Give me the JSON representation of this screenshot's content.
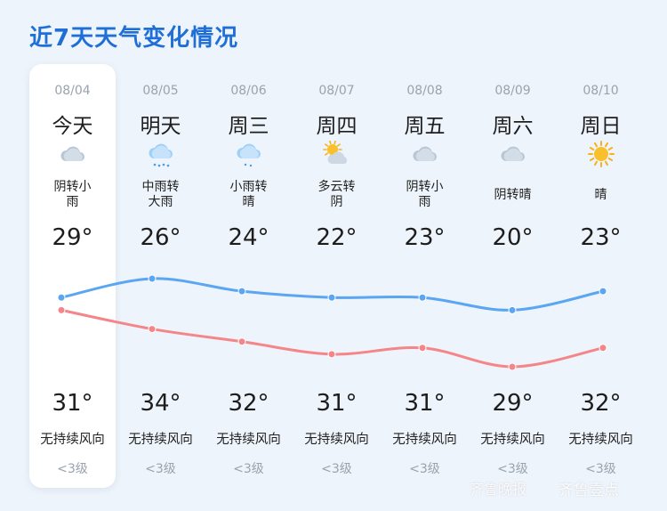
{
  "title": "近7天天气变化情况",
  "days": [
    {
      "date": "08/04",
      "day": "今天",
      "icon": "cloud-icon",
      "cond_lines": [
        "阴转小",
        "雨"
      ],
      "high": "29°",
      "low": "31°",
      "wind": "无持续风向",
      "level": "<3级"
    },
    {
      "date": "08/05",
      "day": "明天",
      "icon": "rain-cloud-icon",
      "cond_lines": [
        "中雨转",
        "大雨"
      ],
      "high": "26°",
      "low": "34°",
      "wind": "无持续风向",
      "level": "<3级"
    },
    {
      "date": "08/06",
      "day": "周三",
      "icon": "light-rain-icon",
      "cond_lines": [
        "小雨转",
        "晴"
      ],
      "high": "24°",
      "low": "32°",
      "wind": "无持续风向",
      "level": "<3级"
    },
    {
      "date": "08/07",
      "day": "周四",
      "icon": "partly-cloudy-icon",
      "cond_lines": [
        "多云转",
        "阴"
      ],
      "high": "22°",
      "low": "31°",
      "wind": "无持续风向",
      "level": "<3级"
    },
    {
      "date": "08/08",
      "day": "周五",
      "icon": "cloud-icon",
      "cond_lines": [
        "阴转小",
        "雨"
      ],
      "high": "23°",
      "low": "31°",
      "wind": "无持续风向",
      "level": "<3级"
    },
    {
      "date": "08/09",
      "day": "周六",
      "icon": "cloud-icon",
      "cond_lines": [
        "阴转晴"
      ],
      "high": "20°",
      "low": "29°",
      "wind": "无持续风向",
      "level": "<3级"
    },
    {
      "date": "08/10",
      "day": "周日",
      "icon": "sun-icon",
      "cond_lines": [
        "晴"
      ],
      "high": "23°",
      "low": "32°",
      "wind": "无持续风向",
      "level": "<3级"
    }
  ],
  "chart_data": {
    "type": "line",
    "categories": [
      "08/04",
      "08/05",
      "08/06",
      "08/07",
      "08/08",
      "08/09",
      "08/10"
    ],
    "series": [
      {
        "values": [
          29,
          26,
          24,
          22,
          23,
          20,
          23
        ],
        "color": "#f4868a"
      },
      {
        "values": [
          31,
          34,
          32,
          31,
          31,
          29,
          32
        ],
        "color": "#5aa6f2"
      }
    ]
  },
  "colors": {
    "title": "#1f6fd6",
    "background": "#eef4fb",
    "card": "#ffffff"
  },
  "watermark": {
    "left": "齐鲁晚报",
    "right": "齐鲁壹点"
  }
}
